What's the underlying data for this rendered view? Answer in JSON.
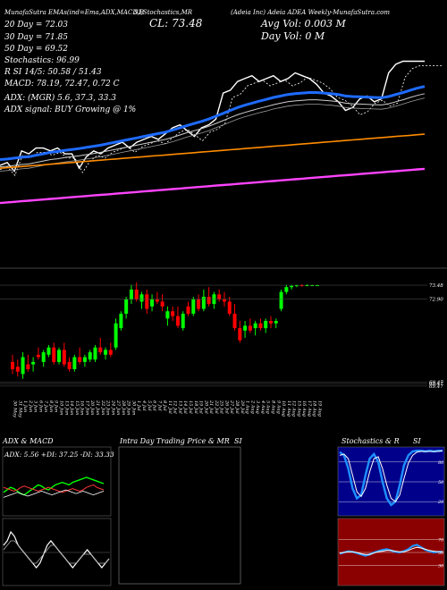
{
  "header": {
    "left_line": "MunafaSutra EMAs(ind=Ema,ADX,MACD,B",
    "mid_line": "SI,Stochastics,MR",
    "title_line": "(Adeia Inc) Adeia ADEA",
    "right_line": "(Adeia Inc) Adeia ADEA Weekly-MunafaSutra.com",
    "close_label": "CL: 73.48",
    "avg_vol": "Avg Vol: 0.003 M",
    "day_vol": "Day Vol: 0  M",
    "ema_lines": [
      "20  Day = 72.03",
      "30  Day = 71.85",
      "50  Day = 69.52",
      "Stochastics: 96.99",
      "R  SI 14/5: 50.58 / 51.43",
      "MACD: 78.19, 72.47, 0.72  C"
    ],
    "adx_line": "ADX:                    (MGR) 5.6,  37.3,  33.3",
    "adx_signal": "ADX  signal:                           BUY Growing @ 1%"
  },
  "panels": {
    "adx_title": "ADX  & MACD",
    "adx_readout": "ADX: 5.56  +DI: 37.25 -DI: 33.33",
    "intraday_title": "Intra Day Trading Price  & MR",
    "intraday_si": "SI",
    "stoch_title": "Stochastics & R",
    "stoch_si": "SI"
  },
  "colors": {
    "up": "#00ff00",
    "down": "#ff0000",
    "price": "#ffffff",
    "ema_fast": "#1e6bff",
    "ema_mid": "#cccccc",
    "ema_orange": "#ff8c00",
    "ema_magenta": "#ff44ff",
    "rsi_bg": "#8b0000"
  },
  "chart_data": [
    {
      "type": "line",
      "name": "price-and-emas",
      "x": [
        "30 May",
        "31 May",
        "1 Jun",
        "2 Jun",
        "3 Jun",
        "6 Jun",
        "7 Jun",
        "8 Jun",
        "9 Jun",
        "10 Jun",
        "13 Jun",
        "14 Jun",
        "15 Jun",
        "16 Jun",
        "17 Jun",
        "20 Jun",
        "21 Jun",
        "22 Jun",
        "23 Jun",
        "24 Jun",
        "27 Jun",
        "28 Jun",
        "29 Jun",
        "30 Jun",
        "1 Jul",
        "4 Jul",
        "5 Jul",
        "6 Jul",
        "7 Jul",
        "8 Jul",
        "11 Jul",
        "12 Jul",
        "13 Jul",
        "14 Jul",
        "15 Jul",
        "18 Jul",
        "19 Jul",
        "20 Jul",
        "21 Jul",
        "22 Jul",
        "25 Jul",
        "26 Jul",
        "27 Jul",
        "28 Jul",
        "29 Jul",
        "1 Aug",
        "2 Aug",
        "3 Aug",
        "4 Aug",
        "5 Aug",
        "8 Aug",
        "9 Aug",
        "10 Aug",
        "11 Aug",
        "12 Aug",
        "15 Aug",
        "16 Aug",
        "17 Aug",
        "18 Aug",
        "19 Aug"
      ],
      "series": [
        {
          "values": [
            69.9,
            70.0,
            69.7,
            70.4,
            70.3,
            70.5,
            70.5,
            70.4,
            70.5,
            70.3,
            70.3,
            69.8,
            70.2,
            70.4,
            70.3,
            70.5,
            70.6,
            70.7,
            70.5,
            70.7,
            70.8,
            70.9,
            70.8,
            71.0,
            71.2,
            71.3,
            71.1,
            70.9,
            71.2,
            71.3,
            71.5,
            72.4,
            72.5,
            72.8,
            72.9,
            73.0,
            72.8,
            72.9,
            73.0,
            72.8,
            72.9,
            73.1,
            73.0,
            72.9,
            72.7,
            72.4,
            72.3,
            72.1,
            71.8,
            71.9,
            72.2,
            72.3,
            72.1,
            72.2,
            73.1,
            73.4,
            73.5,
            73.5,
            73.5,
            73.5
          ]
        },
        {
          "values": [
            70.1,
            70.12,
            70.15,
            70.18,
            70.2,
            70.25,
            70.3,
            70.35,
            70.38,
            70.42,
            70.45,
            70.48,
            70.52,
            70.56,
            70.6,
            70.65,
            70.7,
            70.75,
            70.8,
            70.85,
            70.9,
            70.95,
            71.0,
            71.05,
            71.12,
            71.2,
            71.28,
            71.35,
            71.42,
            71.5,
            71.6,
            71.7,
            71.8,
            71.9,
            71.98,
            72.05,
            72.12,
            72.18,
            72.25,
            72.3,
            72.35,
            72.38,
            72.4,
            72.42,
            72.42,
            72.4,
            72.38,
            72.35,
            72.3,
            72.28,
            72.27,
            72.26,
            72.25,
            72.24,
            72.28,
            72.35,
            72.42,
            72.5,
            72.57,
            72.63
          ]
        },
        {
          "values": [
            69.8,
            69.82,
            69.84,
            69.86,
            69.88,
            69.9,
            69.92,
            69.94,
            69.96,
            69.98,
            70.0,
            70.02,
            70.04,
            70.06,
            70.08,
            70.1,
            70.12,
            70.14,
            70.16,
            70.18,
            70.2,
            70.22,
            70.24,
            70.26,
            70.28,
            70.3,
            70.32,
            70.34,
            70.36,
            70.38,
            70.4,
            70.42,
            70.44,
            70.46,
            70.48,
            70.5,
            70.52,
            70.54,
            70.56,
            70.58,
            70.6,
            70.62,
            70.64,
            70.66,
            70.68,
            70.7,
            70.72,
            70.74,
            70.76,
            70.78,
            70.8,
            70.82,
            70.84,
            70.86,
            70.88,
            70.9,
            70.92,
            70.94,
            70.96,
            70.98
          ]
        },
        {
          "values": [
            68.6,
            68.62,
            68.64,
            68.66,
            68.68,
            68.7,
            68.72,
            68.74,
            68.76,
            68.78,
            68.8,
            68.82,
            68.84,
            68.86,
            68.88,
            68.9,
            68.92,
            68.94,
            68.96,
            68.98,
            69.0,
            69.02,
            69.04,
            69.06,
            69.08,
            69.1,
            69.12,
            69.14,
            69.16,
            69.18,
            69.2,
            69.22,
            69.24,
            69.26,
            69.28,
            69.3,
            69.32,
            69.34,
            69.36,
            69.38,
            69.4,
            69.42,
            69.44,
            69.46,
            69.48,
            69.5,
            69.52,
            69.54,
            69.56,
            69.58,
            69.6,
            69.62,
            69.64,
            69.66,
            69.68,
            69.7,
            69.72,
            69.74,
            69.76,
            69.78
          ]
        }
      ],
      "ylim": [
        66.5,
        75.0
      ]
    },
    {
      "type": "bar",
      "name": "candles",
      "price_ticks": [
        {
          "label": "73.48",
          "value": 73.48
        },
        {
          "label": "72.90",
          "value": 72.9
        },
        {
          "label": "69.47",
          "value": 69.47
        },
        {
          "label": "69.47",
          "value": 69.4
        },
        {
          "label": "69.47",
          "value": 69.3
        }
      ],
      "ylim": [
        69.0,
        74.0
      ],
      "ohlc": [
        [
          70.3,
          70.6,
          69.8,
          70.0
        ],
        [
          70.1,
          70.4,
          69.7,
          69.9
        ],
        [
          69.8,
          70.7,
          69.6,
          70.5
        ],
        [
          70.2,
          70.6,
          69.9,
          70.0
        ],
        [
          70.2,
          70.5,
          69.9,
          70.3
        ],
        [
          70.6,
          70.9,
          70.4,
          70.5
        ],
        [
          70.3,
          70.8,
          70.1,
          70.7
        ],
        [
          70.6,
          71.0,
          70.5,
          70.9
        ],
        [
          70.9,
          71.1,
          70.2,
          70.3
        ],
        [
          70.3,
          70.9,
          70.2,
          70.8
        ],
        [
          70.8,
          71.1,
          70.1,
          70.2
        ],
        [
          70.3,
          70.5,
          69.9,
          70.0
        ],
        [
          70.0,
          70.6,
          69.9,
          70.5
        ],
        [
          70.5,
          70.9,
          70.2,
          70.3
        ],
        [
          70.3,
          70.6,
          70.1,
          70.5
        ],
        [
          70.4,
          70.8,
          70.3,
          70.7
        ],
        [
          70.4,
          71.0,
          70.3,
          70.9
        ],
        [
          70.9,
          71.3,
          70.6,
          70.7
        ],
        [
          70.6,
          70.9,
          70.4,
          70.8
        ],
        [
          70.8,
          71.1,
          70.5,
          70.6
        ],
        [
          70.9,
          72.1,
          70.8,
          71.9
        ],
        [
          71.7,
          72.4,
          71.6,
          72.3
        ],
        [
          72.3,
          73.0,
          72.1,
          72.9
        ],
        [
          72.9,
          73.5,
          72.7,
          73.3
        ],
        [
          73.3,
          73.6,
          72.8,
          72.9
        ],
        [
          72.8,
          73.2,
          72.5,
          73.1
        ],
        [
          73.1,
          73.3,
          72.3,
          72.5
        ],
        [
          72.6,
          73.1,
          72.4,
          72.9
        ],
        [
          72.9,
          73.2,
          72.7,
          72.8
        ],
        [
          72.8,
          73.1,
          72.4,
          72.6
        ],
        [
          72.1,
          72.6,
          71.8,
          72.4
        ],
        [
          72.4,
          72.6,
          72.0,
          72.2
        ],
        [
          72.2,
          72.6,
          71.7,
          71.8
        ],
        [
          71.7,
          72.4,
          71.6,
          72.3
        ],
        [
          72.6,
          72.8,
          72.2,
          72.3
        ],
        [
          72.3,
          73.0,
          72.2,
          72.9
        ],
        [
          72.9,
          73.1,
          72.4,
          72.5
        ],
        [
          72.5,
          73.3,
          72.4,
          73.0
        ],
        [
          73.0,
          73.4,
          72.6,
          72.7
        ],
        [
          72.7,
          73.2,
          72.5,
          73.1
        ],
        [
          73.1,
          73.3,
          72.8,
          72.9
        ],
        [
          72.9,
          73.2,
          72.6,
          72.8
        ],
        [
          72.8,
          73.0,
          72.2,
          72.3
        ],
        [
          72.3,
          72.7,
          71.6,
          71.7
        ],
        [
          71.7,
          72.0,
          71.1,
          71.2
        ],
        [
          71.6,
          72.0,
          71.3,
          71.8
        ],
        [
          71.8,
          72.1,
          71.5,
          71.6
        ],
        [
          71.7,
          72.0,
          71.4,
          71.9
        ],
        [
          71.9,
          72.1,
          71.6,
          71.7
        ],
        [
          71.7,
          72.1,
          71.5,
          72.0
        ],
        [
          72.0,
          72.2,
          71.7,
          71.9
        ],
        [
          71.9,
          72.1,
          71.7,
          72.0
        ],
        [
          72.5,
          73.3,
          72.4,
          73.2
        ],
        [
          73.2,
          73.5,
          73.1,
          73.4
        ],
        [
          73.4,
          73.5,
          73.3,
          73.45
        ],
        [
          73.45,
          73.5,
          73.4,
          73.48
        ],
        [
          73.48,
          73.52,
          73.42,
          73.47
        ],
        [
          73.47,
          73.52,
          73.44,
          73.48
        ],
        [
          73.48,
          73.5,
          73.45,
          73.48
        ],
        [
          73.48,
          73.5,
          73.46,
          73.48
        ]
      ]
    },
    {
      "type": "line",
      "name": "adx",
      "series": [
        {
          "values": [
            18,
            20,
            22,
            21,
            19,
            17,
            16,
            18,
            20,
            22,
            24,
            23,
            21,
            20,
            22,
            24,
            25,
            26,
            25,
            24,
            26,
            27,
            28,
            29,
            30,
            29,
            28,
            27,
            26,
            25
          ]
        },
        {
          "values": [
            22,
            21,
            20,
            19,
            20,
            22,
            23,
            22,
            21,
            20,
            19,
            20,
            21,
            22,
            21,
            20,
            19,
            18,
            19,
            20,
            21,
            20,
            19,
            20,
            22,
            23,
            24,
            22,
            21,
            20
          ]
        },
        {
          "values": [
            14,
            15,
            16,
            17,
            18,
            17,
            16,
            15,
            16,
            17,
            18,
            19,
            18,
            17,
            16,
            17,
            18,
            19,
            20,
            19,
            18,
            17,
            18,
            19,
            18,
            17,
            16,
            17,
            18,
            19
          ]
        }
      ],
      "ylim": [
        0,
        40
      ]
    },
    {
      "type": "line",
      "name": "macd",
      "series": [
        {
          "values": [
            3,
            4,
            6,
            5,
            3,
            2,
            1,
            0,
            -1,
            -2,
            -1,
            1,
            3,
            4,
            3,
            2,
            1,
            0,
            -1,
            -2,
            -1,
            0,
            1,
            2,
            1,
            0,
            -1,
            -2,
            -1,
            0
          ]
        },
        {
          "values": [
            2,
            3,
            4,
            4,
            3,
            2,
            1,
            0,
            -1,
            -1,
            0,
            1,
            2,
            3,
            3,
            2,
            1,
            0,
            -1,
            -1,
            -1,
            0,
            1,
            1,
            1,
            0,
            -1,
            -1,
            -1,
            0
          ]
        }
      ],
      "ylim": [
        -5,
        8
      ]
    },
    {
      "type": "line",
      "name": "stochastics",
      "levels": [
        {
          "label": "80",
          "value": 80
        },
        {
          "label": "50",
          "value": 50
        },
        {
          "label": "20",
          "value": 20
        }
      ],
      "series": [
        {
          "values": [
            95,
            90,
            70,
            40,
            25,
            30,
            60,
            85,
            92,
            80,
            50,
            25,
            15,
            20,
            45,
            75,
            90,
            96,
            97,
            97,
            96,
            97,
            96,
            97,
            97
          ]
        },
        {
          "values": [
            90,
            92,
            85,
            60,
            35,
            28,
            40,
            65,
            85,
            88,
            70,
            45,
            25,
            20,
            30,
            55,
            78,
            90,
            95,
            96,
            96,
            96,
            96,
            96,
            97
          ]
        }
      ],
      "ylim": [
        0,
        100
      ]
    },
    {
      "type": "line",
      "name": "rsi",
      "levels": [
        {
          "label": "70",
          "value": 70
        },
        {
          "label": "50",
          "value": 50
        },
        {
          "label": "30",
          "value": 30
        }
      ],
      "series": [
        {
          "values": [
            48,
            50,
            52,
            51,
            49,
            47,
            45,
            47,
            50,
            52,
            54,
            55,
            53,
            51,
            50,
            52,
            55,
            60,
            62,
            58,
            54,
            52,
            50,
            51,
            51
          ]
        },
        {
          "values": [
            49,
            50,
            51,
            51,
            50,
            48,
            47,
            47,
            49,
            51,
            52,
            53,
            53,
            52,
            51,
            51,
            53,
            56,
            58,
            57,
            55,
            53,
            52,
            51,
            51
          ]
        }
      ],
      "ylim": [
        0,
        100
      ]
    }
  ]
}
